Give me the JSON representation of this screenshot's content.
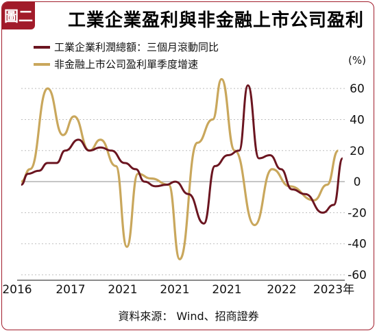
{
  "figure": {
    "tag": "圖二",
    "title": "工業企業盈利與非金融上市公司盈利",
    "source": "資料來源： Wind、招商證券",
    "colors": {
      "accent": "#a11b2a",
      "series1": "#6b1520",
      "series2": "#c9a75c",
      "grid": "#bdbdbd",
      "zero": "#999999"
    }
  },
  "chart_data": {
    "type": "line",
    "x": [
      2016.0,
      2016.25,
      2016.5,
      2016.75,
      2017.0,
      2017.25,
      2017.5,
      2017.75,
      2018.0,
      2018.25,
      2018.5,
      2018.75,
      2019.0,
      2019.25,
      2019.5,
      2019.75,
      2020.0,
      2020.25,
      2020.5,
      2020.75,
      2021.0,
      2021.25,
      2021.5,
      2021.75,
      2022.0,
      2022.25,
      2022.5,
      2022.75,
      2023.0,
      2023.25
    ],
    "x_tick_labels": [
      "2016",
      "2017",
      "2021",
      "2021",
      "2021",
      "2022",
      "2023年"
    ],
    "y_unit": "(%)",
    "yticks": [
      60,
      40,
      20,
      0,
      -20,
      -40,
      -60
    ],
    "ylim": [
      -60,
      68
    ],
    "grid": true,
    "legend_position": "top-left",
    "series": [
      {
        "name": "工業企業利潤總額：三個月滾動同比",
        "color": "#6b1520",
        "values": [
          -2,
          5,
          7,
          12,
          12,
          20,
          27,
          20,
          22,
          20,
          12,
          8,
          0,
          -3,
          -2,
          0,
          -8,
          -27,
          10,
          17,
          20,
          62,
          15,
          17,
          8,
          -5,
          -8,
          -20,
          -15,
          15
        ],
        "x": [
          2016.0,
          2016.15,
          2016.4,
          2016.6,
          2016.8,
          2017.0,
          2017.3,
          2017.55,
          2017.8,
          2018.05,
          2018.35,
          2018.6,
          2018.8,
          2019.05,
          2019.3,
          2019.5,
          2019.8,
          2020.15,
          2020.4,
          2020.7,
          2020.95,
          2021.15,
          2021.4,
          2021.65,
          2021.9,
          2022.15,
          2022.45,
          2022.85,
          2023.1,
          2023.3
        ]
      },
      {
        "name": "非金融上市公司盈利單季度增速",
        "color": "#c9a75c",
        "values": [
          0,
          8,
          60,
          30,
          42,
          20,
          27,
          10,
          -42,
          5,
          2,
          -2,
          -50,
          25,
          40,
          66,
          20,
          -28,
          8,
          -3,
          -12,
          -2,
          20
        ],
        "x": [
          2016.0,
          2016.2,
          2016.6,
          2016.95,
          2017.2,
          2017.55,
          2017.8,
          2018.15,
          2018.4,
          2018.65,
          2018.95,
          2019.35,
          2019.6,
          2020.0,
          2020.35,
          2020.55,
          2020.85,
          2021.3,
          2021.7,
          2022.1,
          2022.65,
          2022.95,
          2023.2
        ]
      }
    ]
  }
}
